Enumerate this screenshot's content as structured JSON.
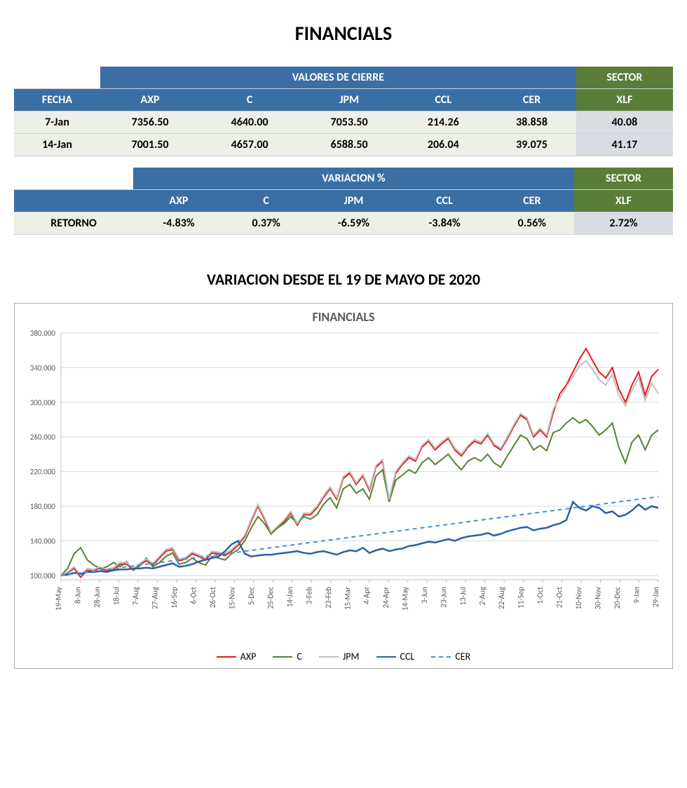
{
  "page": {
    "title": "FINANCIALS",
    "subtitle": "VARIACION DESDE EL 19 DE MAYO DE 2020"
  },
  "table1": {
    "header_group_main": "VALORES DE CIERRE",
    "header_group_sector": "SECTOR",
    "columns": [
      "FECHA",
      "AXP",
      "C",
      "JPM",
      "CCL",
      "CER",
      "XLF"
    ],
    "rows": [
      {
        "fecha": "7-Jan",
        "axp": "7356.50",
        "c": "4640.00",
        "jpm": "7053.50",
        "ccl": "214.26",
        "cer": "38.858",
        "xlf": "40.08"
      },
      {
        "fecha": "14-Jan",
        "axp": "7001.50",
        "c": "4657.00",
        "jpm": "6588.50",
        "ccl": "206.04",
        "cer": "39.075",
        "xlf": "41.17"
      }
    ]
  },
  "table2": {
    "header_group_main": "VARIACION %",
    "header_group_sector": "SECTOR",
    "columns": [
      "",
      "AXP",
      "C",
      "JPM",
      "CCL",
      "CER",
      "XLF"
    ],
    "row_label": "RETORNO",
    "row": {
      "axp": "-4.83%",
      "c": "0.37%",
      "jpm": "-6.59%",
      "ccl": "-3.84%",
      "cer": "0.56%",
      "xlf": "2.72%"
    }
  },
  "chart": {
    "type": "line",
    "title": "FINANCIALS",
    "background_color": "#ffffff",
    "grid_color": "#d9d9d9",
    "axis_color": "#bfbfbf",
    "tick_label_color": "#595959",
    "tick_fontsize": 11,
    "ylim": [
      95,
      380
    ],
    "yticks": [
      100,
      140,
      180,
      220,
      260,
      300,
      340,
      380
    ],
    "ylabels": [
      "100.000",
      "140.000",
      "180.000",
      "220.000",
      "260.000",
      "300.000",
      "340.000",
      "380.000"
    ],
    "x_count": 32,
    "xlabels": [
      "19-May",
      "8-Jun",
      "28-Jun",
      "18-Jul",
      "7-Aug",
      "27-Aug",
      "16-Sep",
      "6-Oct",
      "26-Oct",
      "15-Nov",
      "5-Dec",
      "25-Dec",
      "14-Jan",
      "3-Feb",
      "23-Feb",
      "15-Mar",
      "4-Apr",
      "24-Apr",
      "14-May",
      "3-Jun",
      "23-Jun",
      "13-Jul",
      "2-Aug",
      "22-Aug",
      "11-Sep",
      "1-Oct",
      "21-Oct",
      "10-Nov",
      "30-Nov",
      "20-Dec",
      "9-Jan",
      "29-Jan"
    ],
    "series": [
      {
        "name": "AXP",
        "color": "#e41a1c",
        "width": 2,
        "dash": "none",
        "values": [
          100,
          103,
          108,
          98,
          106,
          105,
          109,
          105,
          107,
          113,
          113,
          106,
          112,
          117,
          112,
          120,
          128,
          130,
          117,
          119,
          125,
          122,
          118,
          126,
          125,
          123,
          128,
          135,
          145,
          163,
          180,
          165,
          148,
          155,
          162,
          172,
          158,
          170,
          170,
          178,
          190,
          200,
          188,
          212,
          218,
          205,
          215,
          198,
          225,
          232,
          185,
          218,
          228,
          236,
          232,
          248,
          255,
          245,
          252,
          258,
          245,
          238,
          248,
          255,
          252,
          262,
          250,
          245,
          258,
          272,
          285,
          280,
          260,
          268,
          260,
          288,
          310,
          320,
          335,
          350,
          362,
          348,
          335,
          328,
          340,
          315,
          300,
          320,
          335,
          308,
          330,
          338
        ]
      },
      {
        "name": "C",
        "color": "#548235",
        "width": 2,
        "dash": "none",
        "values": [
          100,
          108,
          125,
          132,
          118,
          112,
          108,
          110,
          115,
          110,
          116,
          106,
          111,
          120,
          110,
          115,
          122,
          126,
          113,
          115,
          120,
          115,
          112,
          122,
          120,
          118,
          125,
          130,
          140,
          155,
          168,
          160,
          148,
          155,
          160,
          168,
          160,
          168,
          165,
          170,
          182,
          190,
          178,
          200,
          205,
          195,
          200,
          188,
          215,
          222,
          185,
          210,
          216,
          222,
          218,
          230,
          236,
          228,
          234,
          240,
          230,
          222,
          232,
          236,
          232,
          240,
          230,
          225,
          238,
          250,
          262,
          258,
          245,
          250,
          244,
          265,
          268,
          276,
          282,
          276,
          280,
          272,
          262,
          268,
          276,
          248,
          230,
          254,
          262,
          245,
          262,
          268
        ]
      },
      {
        "name": "JPM",
        "color": "#bfbfbf",
        "width": 2,
        "dash": "none",
        "values": [
          100,
          104,
          110,
          100,
          108,
          107,
          110,
          107,
          109,
          115,
          115,
          108,
          114,
          119,
          114,
          122,
          130,
          132,
          119,
          121,
          127,
          124,
          120,
          128,
          127,
          125,
          130,
          137,
          147,
          165,
          182,
          167,
          150,
          157,
          164,
          174,
          160,
          172,
          172,
          180,
          192,
          202,
          190,
          214,
          220,
          207,
          217,
          200,
          227,
          234,
          188,
          220,
          230,
          238,
          234,
          250,
          257,
          247,
          254,
          260,
          247,
          240,
          250,
          257,
          254,
          264,
          252,
          247,
          260,
          274,
          287,
          282,
          262,
          270,
          262,
          292,
          305,
          318,
          330,
          342,
          348,
          338,
          326,
          320,
          332,
          308,
          296,
          314,
          328,
          302,
          322,
          310
        ]
      },
      {
        "name": "CCL",
        "color": "#2e5fa3",
        "width": 2.5,
        "dash": "none",
        "values": [
          100,
          101,
          103,
          102,
          104,
          104,
          105,
          104,
          106,
          107,
          107,
          108,
          108,
          109,
          108,
          110,
          112,
          114,
          110,
          111,
          113,
          116,
          118,
          120,
          122,
          128,
          136,
          140,
          125,
          122,
          123,
          124,
          124,
          125,
          126,
          127,
          128,
          126,
          125,
          127,
          128,
          126,
          124,
          127,
          129,
          128,
          132,
          126,
          129,
          131,
          128,
          130,
          131,
          134,
          135,
          137,
          139,
          138,
          140,
          142,
          140,
          143,
          145,
          146,
          147,
          149,
          146,
          148,
          151,
          153,
          155,
          156,
          152,
          154,
          155,
          158,
          160,
          164,
          185,
          178,
          175,
          180,
          178,
          172,
          174,
          168,
          170,
          175,
          182,
          176,
          180,
          178
        ]
      },
      {
        "name": "CER",
        "color": "#4a8fd6",
        "width": 2,
        "dash": "6,5",
        "values": [
          100,
          101,
          102,
          103,
          104,
          105,
          106,
          107,
          108,
          109,
          110,
          111,
          112,
          113,
          114,
          115,
          116,
          117,
          118,
          119,
          120,
          121,
          122,
          123,
          124,
          125,
          126,
          127,
          128,
          129,
          130,
          131,
          132,
          133,
          134,
          135,
          136,
          137,
          138,
          139,
          140,
          141,
          142,
          143,
          144,
          145,
          146,
          147,
          148,
          149,
          150,
          151,
          152,
          153,
          154,
          155,
          156,
          157,
          158,
          159,
          160,
          161,
          162,
          163,
          164,
          165,
          166,
          167,
          168,
          169,
          170,
          171,
          172,
          173,
          174,
          175,
          176,
          177,
          178,
          179,
          180,
          181,
          182,
          183,
          184,
          185,
          186,
          187,
          188,
          189,
          190,
          191
        ]
      }
    ],
    "legend": [
      {
        "label": "AXP",
        "color": "#e41a1c",
        "dash": "solid"
      },
      {
        "label": "C",
        "color": "#548235",
        "dash": "solid"
      },
      {
        "label": "JPM",
        "color": "#bfbfbf",
        "dash": "solid"
      },
      {
        "label": "CCL",
        "color": "#2e5fa3",
        "dash": "solid"
      },
      {
        "label": "CER",
        "color": "#4a8fd6",
        "dash": "dashed"
      }
    ]
  }
}
